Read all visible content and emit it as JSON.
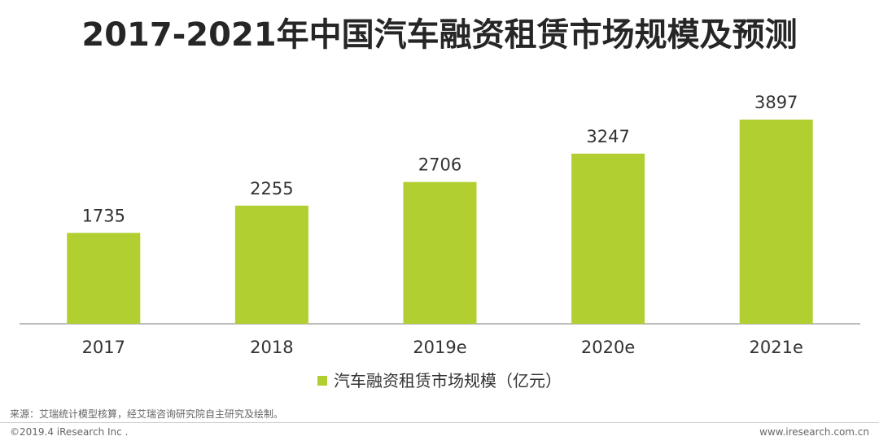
{
  "chart_data": {
    "type": "bar",
    "title": "2017-2021年中国汽车融资租赁市场规模及预测",
    "categories": [
      "2017",
      "2018",
      "2019e",
      "2020e",
      "2021e"
    ],
    "series": [
      {
        "name": "汽车融资租赁市场规模（亿元）",
        "values": [
          1735,
          2255,
          2706,
          3247,
          3897
        ]
      }
    ],
    "ylim": [
      0,
      4500
    ],
    "grid": false,
    "legend_position": "bottom-center",
    "colors": {
      "bar": "#b1cf31"
    }
  },
  "footer": {
    "source": "来源：艾瑞统计模型核算，经艾瑞咨询研究院自主研究及绘制。",
    "copyright": "©2019.4 iResearch Inc .",
    "website": "www.iresearch.com.cn"
  }
}
